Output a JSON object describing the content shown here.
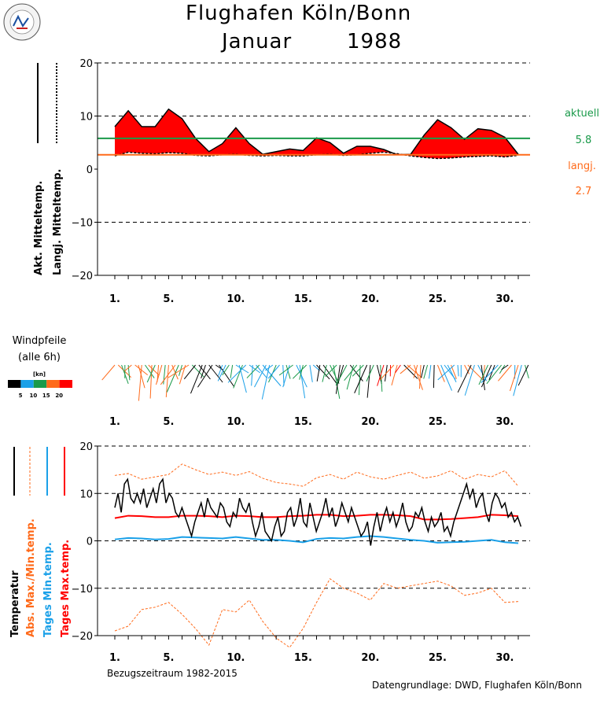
{
  "header": {
    "title_line1": "Flughafen Köln/Bonn",
    "month": "Januar",
    "year": "1988"
  },
  "x_labels": [
    "1.",
    "5.",
    "10.",
    "15.",
    "20.",
    "25.",
    "30."
  ],
  "chart_data": [
    {
      "type": "area",
      "ylim": [
        -20,
        20
      ],
      "yticks": [
        "20",
        "10",
        "0",
        "−10",
        "−20"
      ],
      "series_labels": {
        "actual": "Akt. Mitteltemp.",
        "longterm": "Langj. Mitteltemp."
      },
      "x": [
        1,
        2,
        3,
        4,
        5,
        6,
        7,
        8,
        9,
        10,
        11,
        12,
        13,
        14,
        15,
        16,
        17,
        18,
        19,
        20,
        21,
        22,
        23,
        24,
        25,
        26,
        27,
        28,
        29,
        30,
        31
      ],
      "actual_mean": [
        8.0,
        11.0,
        8.0,
        8.0,
        11.3,
        9.5,
        5.8,
        3.3,
        4.8,
        7.8,
        4.8,
        2.8,
        3.3,
        3.8,
        3.5,
        5.9,
        5.0,
        3.0,
        4.3,
        4.3,
        3.7,
        2.7,
        2.8,
        6.4,
        9.3,
        7.8,
        5.6,
        7.6,
        7.3,
        6.0,
        2.8
      ],
      "longterm_mean": [
        2.5,
        3.2,
        3.0,
        2.9,
        3.1,
        3.0,
        2.6,
        2.5,
        2.7,
        2.8,
        2.6,
        2.5,
        2.6,
        2.5,
        2.5,
        2.7,
        2.8,
        2.6,
        2.7,
        3.0,
        3.2,
        2.9,
        2.5,
        2.2,
        2.0,
        2.1,
        2.3,
        2.4,
        2.5,
        2.3,
        2.6
      ],
      "legend": {
        "actual_label": "aktuell",
        "actual_value": "5.8",
        "longterm_label": "langj.",
        "longterm_value": "2.7"
      },
      "colors": {
        "fill": "#ff0000",
        "actual_line": "#1a9a4a",
        "longterm_line": "#ff6a1a"
      }
    },
    {
      "type": "wind-barbs",
      "title_line1": "Windpfeile",
      "title_line2": "(alle 6h)",
      "unit": "[kn]",
      "scale_labels": [
        "5",
        "10",
        "15",
        "20"
      ],
      "scale_colors": [
        "#000000",
        "#1aa0e8",
        "#1a9a4a",
        "#ff6a1a",
        "#ff0000"
      ]
    },
    {
      "type": "line",
      "ylim": [
        -20,
        20
      ],
      "yticks": [
        "20",
        "10",
        "0",
        "−10",
        "−20"
      ],
      "series_labels": {
        "temp": "Temperatur",
        "absmaxmin": "Abs. Max./Min.temp.",
        "daymin": "Tages Min.temp.",
        "daymax": "Tages Max.temp."
      },
      "reference_period": "Bezugszeitraum 1982-2015",
      "source": "Datengrundlage: DWD, Flughafen Köln/Bonn",
      "x": [
        1,
        2,
        3,
        4,
        5,
        6,
        7,
        8,
        9,
        10,
        11,
        12,
        13,
        14,
        15,
        16,
        17,
        18,
        19,
        20,
        21,
        22,
        23,
        24,
        25,
        26,
        27,
        28,
        29,
        30,
        31
      ],
      "abs_max": [
        13.8,
        14.2,
        13.0,
        13.5,
        14.0,
        16.2,
        15.0,
        14.0,
        14.5,
        13.8,
        14.6,
        13.2,
        12.3,
        12.0,
        11.5,
        13.3,
        14.0,
        13.0,
        14.5,
        13.5,
        13.0,
        13.8,
        14.5,
        13.2,
        13.7,
        14.8,
        13.0,
        14.0,
        13.5,
        14.8,
        11.5
      ],
      "abs_min": [
        -19.0,
        -18.0,
        -14.5,
        -14.0,
        -13.0,
        -15.5,
        -18.5,
        -22.0,
        -14.5,
        -15.0,
        -12.5,
        -17.0,
        -20.5,
        -22.5,
        -18.5,
        -13.0,
        -8.0,
        -10.0,
        -11.0,
        -12.5,
        -9.0,
        -10.0,
        -9.5,
        -9.0,
        -8.5,
        -9.5,
        -11.5,
        -11.0,
        -10.0,
        -13.0,
        -12.8
      ],
      "day_max": [
        4.8,
        5.3,
        5.2,
        5.0,
        5.0,
        5.3,
        5.3,
        5.2,
        5.0,
        5.3,
        5.2,
        5.0,
        5.0,
        5.2,
        5.3,
        5.5,
        5.5,
        5.2,
        5.3,
        5.5,
        5.5,
        5.4,
        5.2,
        4.5,
        4.5,
        4.6,
        4.8,
        5.0,
        5.5,
        5.4,
        5.2
      ],
      "day_min": [
        0.3,
        0.6,
        0.5,
        0.3,
        0.4,
        0.8,
        0.7,
        0.6,
        0.5,
        0.8,
        0.5,
        0.2,
        0.2,
        0.0,
        -0.3,
        0.4,
        0.6,
        0.5,
        0.8,
        1.0,
        0.8,
        0.5,
        0.2,
        0.0,
        -0.4,
        -0.3,
        -0.2,
        0.0,
        0.2,
        -0.3,
        -0.5
      ],
      "temp": [
        7,
        10,
        6,
        12,
        13,
        9,
        8,
        10,
        8,
        11,
        7,
        9,
        11,
        8,
        12,
        13,
        8,
        10,
        9,
        6,
        5,
        7,
        5,
        3,
        1,
        4,
        6,
        8,
        5,
        9,
        7,
        6,
        5,
        8,
        7,
        4,
        3,
        6,
        5,
        9,
        7,
        6,
        8,
        4,
        1,
        3,
        6,
        2,
        1,
        0,
        3,
        5,
        1,
        2,
        6,
        7,
        3,
        5,
        9,
        4,
        3,
        8,
        5,
        2,
        4,
        6,
        9,
        5,
        7,
        3,
        5,
        8,
        6,
        4,
        7,
        5,
        3,
        1,
        2,
        4,
        -1,
        3,
        6,
        2,
        5,
        7,
        4,
        6,
        3,
        5,
        8,
        4,
        2,
        3,
        6,
        5,
        7,
        4,
        2,
        5,
        3,
        4,
        6,
        2,
        3,
        1,
        4,
        6,
        8,
        10,
        12,
        9,
        11,
        7,
        9,
        10,
        6,
        4,
        8,
        10,
        9,
        7,
        8,
        5,
        6,
        4,
        5,
        3
      ]
    }
  ]
}
